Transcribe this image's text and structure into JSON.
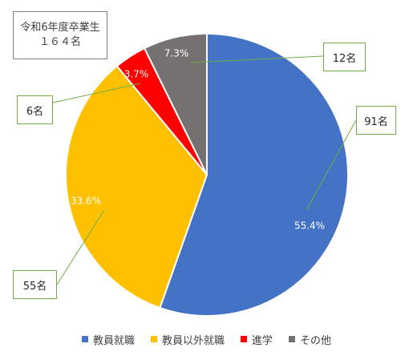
{
  "title_box": {
    "line1": "令和6年度卒業生",
    "line2": "１６４名"
  },
  "chart_data": {
    "type": "pie",
    "start_angle_deg": 0,
    "direction": "clockwise",
    "slices": [
      {
        "name": "教員就職",
        "percent": 55.4,
        "percent_label": "55.4%",
        "count_label": "91名",
        "color": "#4472c4",
        "label_color": "#ffffff"
      },
      {
        "name": "教員以外就職",
        "percent": 33.6,
        "percent_label": "33.6%",
        "count_label": "55名",
        "color": "#ffc000",
        "label_color": "#ffffff"
      },
      {
        "name": "進学",
        "percent": 3.7,
        "percent_label": "3.7%",
        "count_label": "6名",
        "color": "#ff0000",
        "label_color": "#ffffff"
      },
      {
        "name": "その他",
        "percent": 7.3,
        "percent_label": "7.3%",
        "count_label": "12名",
        "color": "#767171",
        "label_color": "#ffffff"
      }
    ],
    "leader_line_color": "#70ad47",
    "legend": {
      "position": "bottom",
      "items": [
        "教員就職",
        "教員以外就職",
        "進学",
        "その他"
      ]
    }
  }
}
